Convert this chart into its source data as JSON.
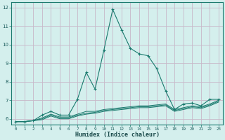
{
  "xlabel": "Humidex (Indice chaleur)",
  "x_values": [
    0,
    1,
    2,
    3,
    4,
    5,
    6,
    7,
    8,
    9,
    10,
    11,
    12,
    13,
    14,
    15,
    16,
    17,
    18,
    19,
    20,
    21,
    22,
    23
  ],
  "main_line": [
    5.85,
    5.85,
    5.9,
    6.2,
    6.4,
    6.2,
    6.2,
    7.05,
    8.5,
    7.6,
    9.7,
    11.9,
    10.8,
    9.8,
    9.5,
    9.4,
    8.7,
    7.5,
    6.5,
    6.8,
    6.85,
    6.7,
    7.05,
    7.05
  ],
  "line2": [
    5.85,
    5.85,
    5.9,
    6.05,
    6.25,
    6.1,
    6.1,
    6.25,
    6.4,
    6.4,
    6.5,
    6.55,
    6.6,
    6.65,
    6.7,
    6.7,
    6.75,
    6.8,
    6.5,
    6.6,
    6.7,
    6.65,
    6.8,
    7.0
  ],
  "line3": [
    5.85,
    5.85,
    5.9,
    6.0,
    6.2,
    6.05,
    6.05,
    6.2,
    6.3,
    6.35,
    6.45,
    6.5,
    6.55,
    6.6,
    6.65,
    6.65,
    6.7,
    6.75,
    6.45,
    6.55,
    6.65,
    6.6,
    6.75,
    6.95
  ],
  "line4": [
    5.85,
    5.85,
    5.9,
    5.95,
    6.15,
    6.0,
    6.0,
    6.15,
    6.25,
    6.3,
    6.4,
    6.45,
    6.5,
    6.55,
    6.6,
    6.6,
    6.65,
    6.7,
    6.4,
    6.5,
    6.6,
    6.55,
    6.7,
    6.9
  ],
  "line_color": "#1a7a6e",
  "bg_color": "#d4efed",
  "grid_color_major": "#b8b8c8",
  "grid_color_minor": "#d0d0dc",
  "ylim": [
    5.7,
    12.3
  ],
  "xlim": [
    -0.5,
    23.5
  ],
  "yticks": [
    6,
    7,
    8,
    9,
    10,
    11,
    12
  ],
  "xticks": [
    0,
    1,
    2,
    3,
    4,
    5,
    6,
    7,
    8,
    9,
    10,
    11,
    12,
    13,
    14,
    15,
    16,
    17,
    18,
    19,
    20,
    21,
    22,
    23
  ]
}
